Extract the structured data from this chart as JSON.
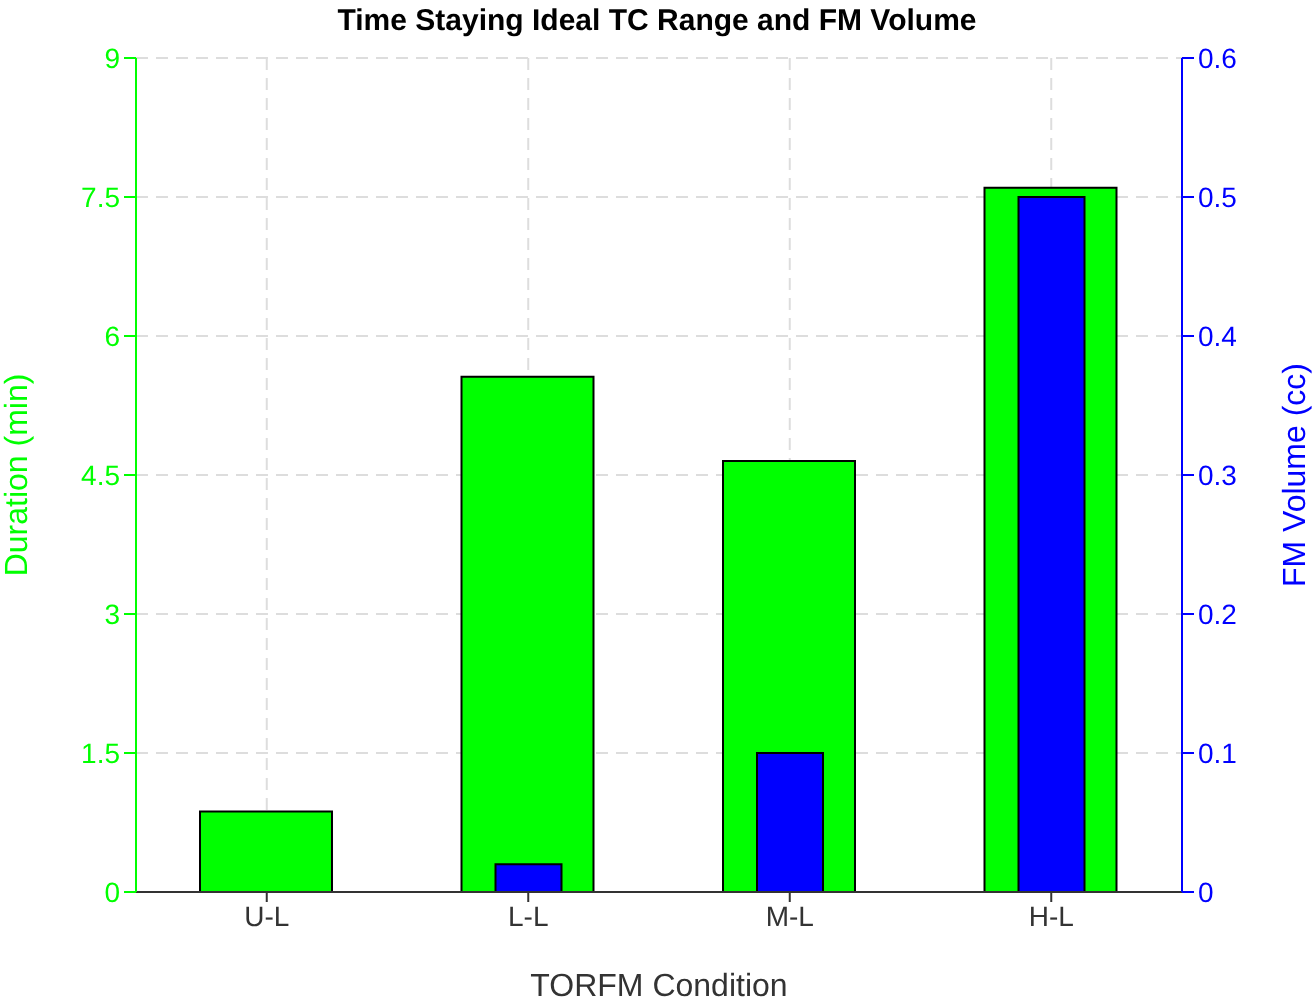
{
  "chart_data": {
    "type": "bar",
    "title": "Time Staying Ideal TC Range and FM Volume",
    "xlabel": "TORFM Condition",
    "ylabel": "Duration (min)",
    "y2label": "FM Volume (cc)",
    "categories": [
      "U-L",
      "L-L",
      "M-L",
      "H-L"
    ],
    "series": [
      {
        "color": "#00ff00",
        "values": [
          0.87,
          5.56,
          4.65,
          7.6
        ]
      },
      {
        "color": "#0000ff",
        "values": [
          0,
          0.02,
          0.1,
          0.5
        ],
        "axis": "y2"
      }
    ],
    "ylim": [
      0,
      9
    ],
    "yticks": [
      0,
      1.5,
      3,
      4.5,
      6,
      7.5,
      9
    ],
    "y2lim": [
      0,
      0.6
    ],
    "y2ticks": [
      0,
      0.1,
      0.2,
      0.3,
      0.4,
      0.5,
      0.6
    ],
    "grid": true
  }
}
